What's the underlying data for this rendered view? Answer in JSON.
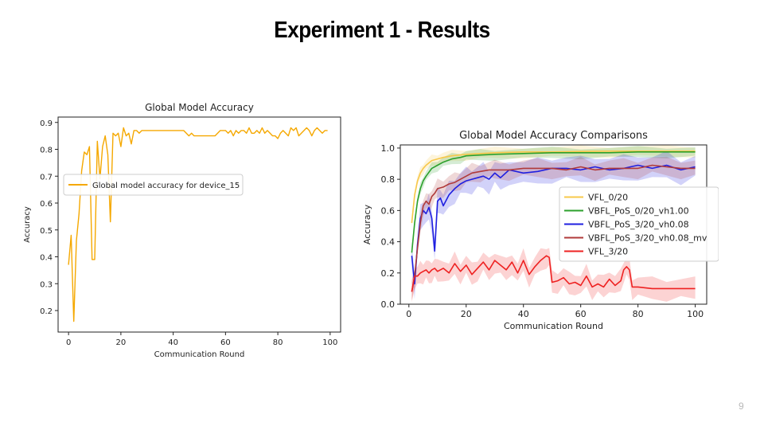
{
  "slide": {
    "title": "Experiment 1 - Results",
    "page_number": "9"
  },
  "colors": {
    "orange": "#f5a800",
    "vfl_light": "#f7c84a",
    "green": "#2ca02c",
    "blue": "#1f1fe0",
    "darkred": "#b03a3a",
    "red": "#ee2222"
  },
  "chart_data": [
    {
      "type": "line",
      "title": "Global Model Accuracy",
      "xlabel": "Communication Round",
      "ylabel": "Accuracy",
      "xlim": [
        -4,
        104
      ],
      "ylim": [
        0.12,
        0.92
      ],
      "xticks": [
        0,
        20,
        40,
        60,
        80,
        100
      ],
      "yticks": [
        0.2,
        0.3,
        0.4,
        0.5,
        0.6,
        0.7,
        0.8,
        0.9
      ],
      "legend_position": "center-left",
      "series": [
        {
          "name": "Global model accuracy for device_15",
          "color": "#f5a800",
          "x": [
            0,
            1,
            2,
            3,
            4,
            5,
            6,
            7,
            8,
            9,
            10,
            11,
            12,
            13,
            14,
            15,
            16,
            17,
            18,
            19,
            20,
            21,
            22,
            23,
            24,
            25,
            26,
            27,
            28,
            29,
            30,
            32,
            34,
            36,
            38,
            40,
            42,
            44,
            45,
            46,
            47,
            48,
            50,
            52,
            54,
            56,
            58,
            60,
            61,
            62,
            63,
            64,
            65,
            66,
            67,
            68,
            69,
            70,
            71,
            72,
            73,
            74,
            75,
            76,
            77,
            78,
            79,
            80,
            81,
            82,
            83,
            84,
            85,
            86,
            87,
            88,
            89,
            90,
            91,
            92,
            93,
            94,
            95,
            96,
            97,
            98,
            99
          ],
          "y": [
            0.37,
            0.48,
            0.16,
            0.46,
            0.56,
            0.72,
            0.79,
            0.78,
            0.81,
            0.39,
            0.39,
            0.83,
            0.69,
            0.81,
            0.85,
            0.78,
            0.53,
            0.86,
            0.85,
            0.86,
            0.81,
            0.88,
            0.85,
            0.86,
            0.82,
            0.87,
            0.87,
            0.86,
            0.87,
            0.87,
            0.87,
            0.87,
            0.87,
            0.87,
            0.87,
            0.87,
            0.87,
            0.87,
            0.86,
            0.85,
            0.86,
            0.85,
            0.85,
            0.85,
            0.85,
            0.85,
            0.87,
            0.87,
            0.86,
            0.87,
            0.85,
            0.87,
            0.86,
            0.87,
            0.87,
            0.86,
            0.88,
            0.86,
            0.86,
            0.87,
            0.86,
            0.88,
            0.86,
            0.87,
            0.86,
            0.85,
            0.85,
            0.84,
            0.86,
            0.87,
            0.86,
            0.85,
            0.88,
            0.87,
            0.88,
            0.85,
            0.86,
            0.87,
            0.88,
            0.87,
            0.85,
            0.87,
            0.88,
            0.87,
            0.86,
            0.87,
            0.87
          ]
        }
      ]
    },
    {
      "type": "line",
      "title": "Global Model Accuracy Comparisons",
      "xlabel": "Communication Round",
      "ylabel": "Accuracy",
      "xlim": [
        -3,
        104
      ],
      "ylim": [
        0.0,
        1.02
      ],
      "xticks": [
        0,
        20,
        40,
        60,
        80,
        100
      ],
      "yticks": [
        0.0,
        0.2,
        0.4,
        0.6,
        0.8,
        1.0
      ],
      "legend_position": "right",
      "series": [
        {
          "name": "VFL_0/20",
          "color": "#f7c84a",
          "x": [
            1,
            2,
            3,
            4,
            5,
            6,
            8,
            10,
            12,
            15,
            20,
            25,
            30,
            40,
            50,
            60,
            70,
            80,
            90,
            100
          ],
          "y": [
            0.52,
            0.7,
            0.79,
            0.84,
            0.87,
            0.89,
            0.92,
            0.93,
            0.94,
            0.95,
            0.96,
            0.965,
            0.97,
            0.975,
            0.975,
            0.978,
            0.98,
            0.98,
            0.98,
            0.98
          ],
          "band": 0.03
        },
        {
          "name": "VBFL_PoS_0/20_vh1.00",
          "color": "#2ca02c",
          "x": [
            1,
            2,
            3,
            4,
            5,
            6,
            8,
            10,
            12,
            15,
            18,
            20,
            25,
            30,
            40,
            50,
            60,
            70,
            80,
            90,
            100
          ],
          "y": [
            0.33,
            0.52,
            0.66,
            0.74,
            0.79,
            0.82,
            0.87,
            0.89,
            0.91,
            0.93,
            0.94,
            0.95,
            0.955,
            0.96,
            0.965,
            0.97,
            0.97,
            0.97,
            0.975,
            0.975,
            0.975
          ],
          "band": 0.03
        },
        {
          "name": "VBFL_PoS_3/20_vh0.08",
          "color": "#1f1fe0",
          "x": [
            1,
            2,
            3,
            4,
            5,
            6,
            7,
            8,
            9,
            10,
            11,
            12,
            14,
            16,
            18,
            20,
            22,
            24,
            26,
            28,
            30,
            32,
            35,
            40,
            45,
            50,
            55,
            60,
            65,
            70,
            75,
            80,
            85,
            90,
            95,
            100
          ],
          "y": [
            0.31,
            0.13,
            0.38,
            0.55,
            0.6,
            0.58,
            0.62,
            0.55,
            0.34,
            0.66,
            0.68,
            0.63,
            0.7,
            0.74,
            0.77,
            0.79,
            0.8,
            0.81,
            0.82,
            0.8,
            0.84,
            0.81,
            0.86,
            0.84,
            0.85,
            0.87,
            0.87,
            0.86,
            0.88,
            0.86,
            0.87,
            0.89,
            0.87,
            0.89,
            0.86,
            0.88
          ],
          "band": 0.07
        },
        {
          "name": "VBFL_PoS_3/20_vh0.08_mv",
          "color": "#b03a3a",
          "x": [
            1,
            2,
            3,
            4,
            5,
            6,
            7,
            8,
            9,
            10,
            12,
            14,
            16,
            18,
            20,
            22,
            25,
            28,
            30,
            35,
            40,
            45,
            50,
            55,
            60,
            65,
            70,
            75,
            80,
            85,
            90,
            95,
            100
          ],
          "y": [
            0.08,
            0.18,
            0.36,
            0.52,
            0.63,
            0.66,
            0.64,
            0.69,
            0.71,
            0.74,
            0.75,
            0.77,
            0.78,
            0.8,
            0.82,
            0.84,
            0.85,
            0.86,
            0.86,
            0.86,
            0.87,
            0.87,
            0.87,
            0.86,
            0.88,
            0.86,
            0.87,
            0.87,
            0.87,
            0.89,
            0.88,
            0.87,
            0.87
          ],
          "band": 0.05
        },
        {
          "name": "VFL_3/20",
          "color": "#ee2222",
          "x": [
            1,
            2,
            3,
            4,
            5,
            6,
            7,
            8,
            9,
            10,
            12,
            14,
            16,
            18,
            20,
            22,
            24,
            26,
            28,
            30,
            32,
            34,
            36,
            38,
            40,
            42,
            44,
            46,
            48,
            49,
            50,
            52,
            54,
            56,
            58,
            60,
            62,
            64,
            66,
            68,
            70,
            72,
            74,
            75,
            76,
            77,
            78,
            80,
            85,
            90,
            95,
            100
          ],
          "y": [
            0.08,
            0.18,
            0.18,
            0.2,
            0.21,
            0.22,
            0.2,
            0.22,
            0.23,
            0.21,
            0.23,
            0.2,
            0.26,
            0.21,
            0.25,
            0.19,
            0.23,
            0.27,
            0.22,
            0.28,
            0.25,
            0.22,
            0.27,
            0.2,
            0.28,
            0.19,
            0.24,
            0.28,
            0.31,
            0.3,
            0.14,
            0.15,
            0.17,
            0.13,
            0.14,
            0.12,
            0.18,
            0.11,
            0.13,
            0.11,
            0.16,
            0.12,
            0.15,
            0.22,
            0.24,
            0.22,
            0.11,
            0.11,
            0.1,
            0.1,
            0.1,
            0.1
          ],
          "band": 0.06
        }
      ]
    }
  ]
}
